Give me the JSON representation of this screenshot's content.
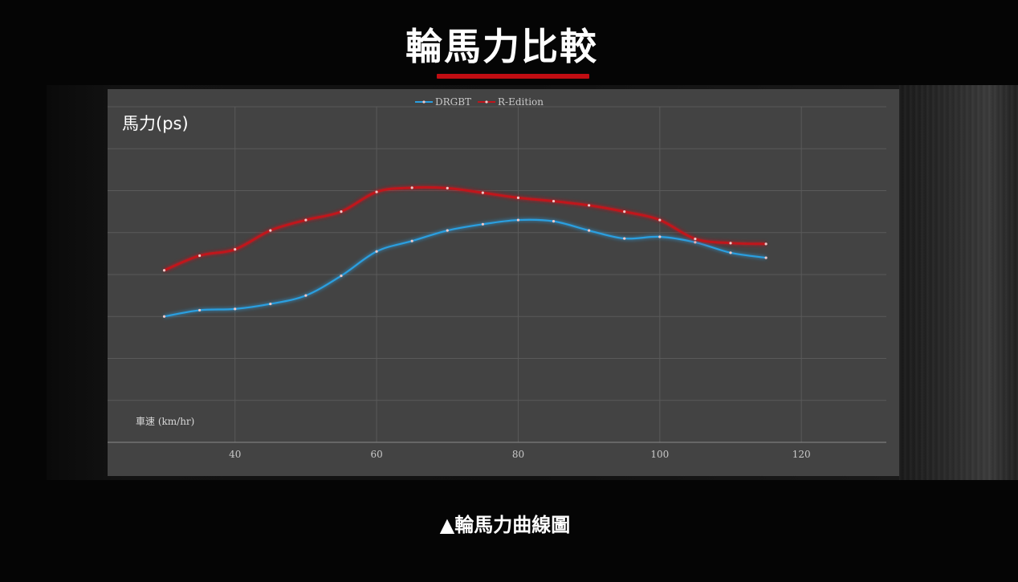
{
  "page": {
    "title": "輪馬力比較",
    "caption": "▲輪馬力曲線圖",
    "accent_color": "#c00d12"
  },
  "chart_data": {
    "type": "line",
    "ylabel": "馬力(ps)",
    "xlabel": "車速 (km/hr)",
    "x_ticks": [
      40,
      60,
      80,
      100,
      120
    ],
    "xlim": [
      22,
      132
    ],
    "ylim": [
      0,
      8
    ],
    "y_gridlines": [
      1,
      2,
      3,
      4,
      5,
      6,
      7,
      8
    ],
    "grid": true,
    "legend_position": "top-center",
    "series": [
      {
        "name": "DRGBT",
        "color": "#2a9fe0",
        "x": [
          30,
          35,
          40,
          45,
          50,
          55,
          60,
          65,
          70,
          75,
          80,
          85,
          90,
          95,
          100,
          105,
          110,
          115
        ],
        "y": [
          3.0,
          3.15,
          3.18,
          3.3,
          3.5,
          3.97,
          4.55,
          4.8,
          5.05,
          5.2,
          5.3,
          5.27,
          5.05,
          4.86,
          4.9,
          4.77,
          4.52,
          4.4
        ]
      },
      {
        "name": "R-Edition",
        "color": "#c0141c",
        "x": [
          30,
          35,
          40,
          45,
          50,
          55,
          60,
          65,
          70,
          75,
          80,
          85,
          90,
          95,
          100,
          105,
          110,
          115
        ],
        "y": [
          4.1,
          4.45,
          4.6,
          5.05,
          5.3,
          5.5,
          5.97,
          6.07,
          6.06,
          5.95,
          5.83,
          5.75,
          5.65,
          5.5,
          5.3,
          4.85,
          4.75,
          4.73
        ]
      }
    ]
  }
}
